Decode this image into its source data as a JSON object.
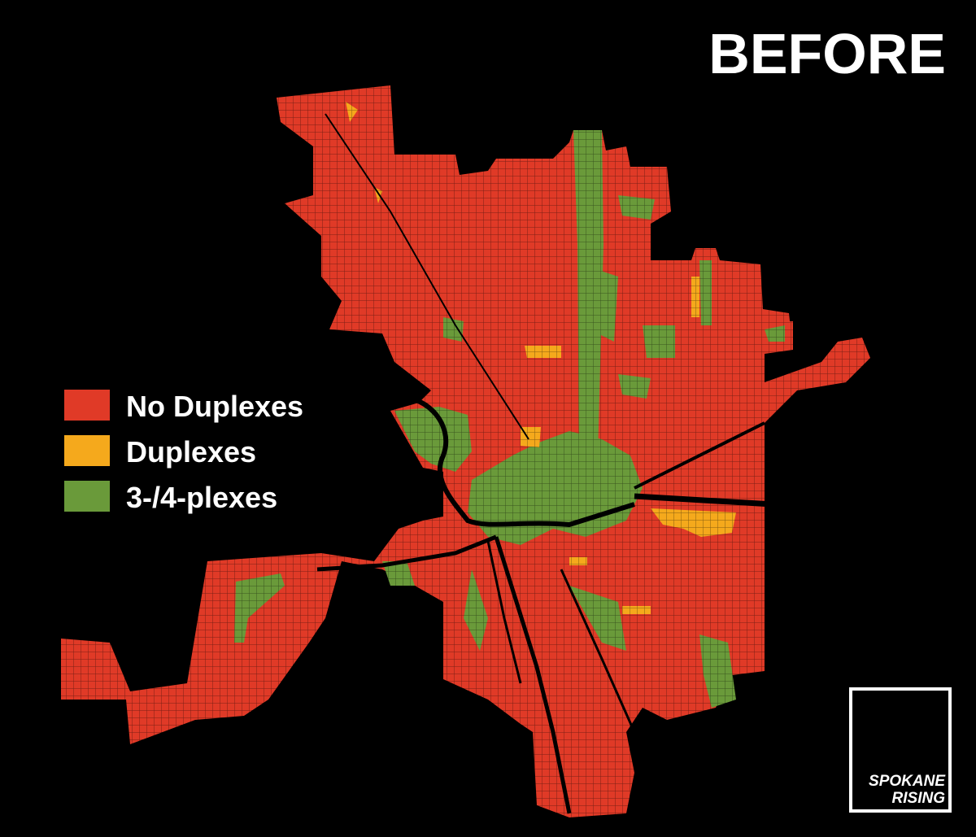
{
  "title": "BEFORE",
  "legend": [
    {
      "label": "No Duplexes",
      "color": "#e03a27"
    },
    {
      "label": "Duplexes",
      "color": "#f5a91c"
    },
    {
      "label": "3-/4-plexes",
      "color": "#6a9a3a"
    }
  ],
  "logo": {
    "line1": "SPOKANE",
    "line2": "RISING"
  }
}
